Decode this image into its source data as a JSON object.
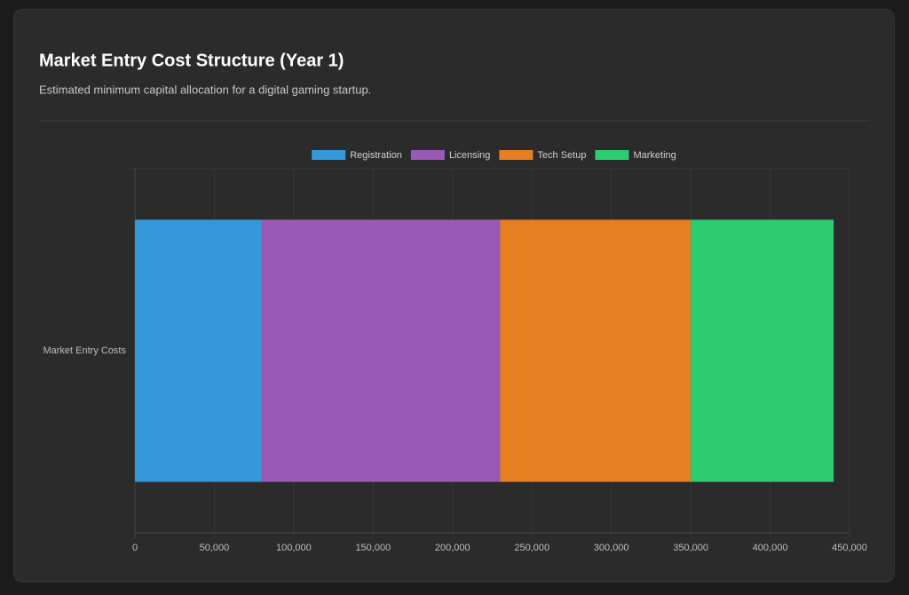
{
  "chart_data": {
    "type": "stacked-barh",
    "title": "Market Entry Cost Structure (Year 1)",
    "subtitle": "Estimated minimum capital allocation for a digital gaming startup.",
    "categories": [
      "Market Entry Costs"
    ],
    "series": [
      {
        "name": "Registration",
        "color": "#3498db",
        "values": [
          80000
        ]
      },
      {
        "name": "Licensing",
        "color": "#9b59b6",
        "values": [
          150000
        ]
      },
      {
        "name": "Tech Setup",
        "color": "#e67e22",
        "values": [
          120000
        ]
      },
      {
        "name": "Marketing",
        "color": "#2ecc71",
        "values": [
          90000
        ]
      }
    ],
    "xlim": [
      0,
      450000
    ],
    "xticks": [
      0,
      {
        "value": 50000,
        "label": "50,000"
      },
      {
        "value": 100000,
        "label": "100,000"
      },
      {
        "value": 150000,
        "label": "150,000"
      },
      {
        "value": 200000,
        "label": "200,000"
      },
      {
        "value": 250000,
        "label": "250,000"
      },
      {
        "value": 300000,
        "label": "300,000"
      },
      {
        "value": 350000,
        "label": "350,000"
      },
      {
        "value": 400000,
        "label": "400,000"
      },
      {
        "value": 450000,
        "label": "450,000"
      }
    ],
    "grid": true,
    "legend": "top"
  }
}
